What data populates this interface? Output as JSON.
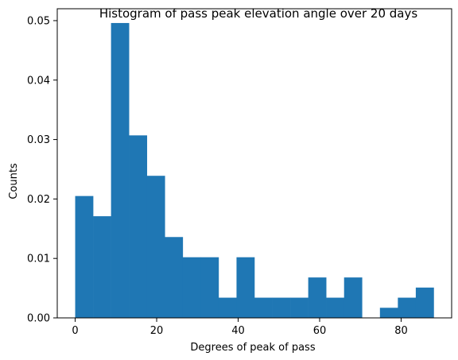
{
  "chart_data": {
    "type": "bar",
    "title": "Histogram of pass peak elevation angle over 20 days",
    "xlabel": "Degrees of peak of pass",
    "ylabel": "Counts",
    "bin_edges": [
      0.0,
      4.4,
      8.8,
      13.2,
      17.6,
      22.0,
      26.4,
      30.8,
      35.2,
      39.6,
      44.0,
      48.4,
      52.8,
      57.2,
      61.6,
      66.0,
      70.4,
      74.8,
      79.2,
      83.6,
      88.0
    ],
    "values": [
      0.0205,
      0.0171,
      0.0496,
      0.0307,
      0.0239,
      0.0136,
      0.0102,
      0.0102,
      0.0034,
      0.0102,
      0.0034,
      0.0034,
      0.0034,
      0.0068,
      0.0034,
      0.0068,
      0.0,
      0.0017,
      0.0034,
      0.0051
    ],
    "xlim": [
      -4.4,
      92.4
    ],
    "ylim": [
      0,
      0.052
    ],
    "xticks": [
      0,
      20,
      40,
      60,
      80
    ],
    "yticks": [
      0.0,
      0.01,
      0.02,
      0.03,
      0.04,
      0.05
    ],
    "ytick_labels": [
      "0.00",
      "0.01",
      "0.02",
      "0.03",
      "0.04",
      "0.05"
    ],
    "bar_color": "#1f77b4",
    "grid": false,
    "legend": "none"
  }
}
